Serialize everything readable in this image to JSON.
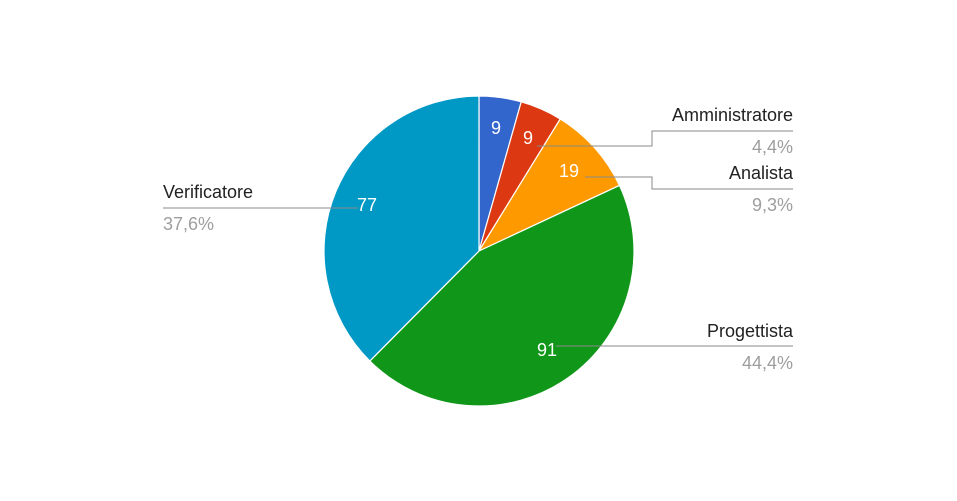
{
  "chart_data": {
    "type": "pie",
    "categories": [
      "",
      "Amministratore",
      "Analista",
      "Progettista",
      "Verificatore"
    ],
    "values": [
      9,
      9,
      19,
      91,
      77
    ],
    "value_labels": [
      "9",
      "9",
      "19",
      "91",
      "77"
    ],
    "percent_labels": [
      "",
      "4,4%",
      "9,3%",
      "44,4%",
      "37,6%"
    ],
    "colors": [
      "#3366cc",
      "#dc3912",
      "#ff9900",
      "#109618",
      "#0099c6"
    ],
    "start_angle_deg": 0,
    "direction": "clockwise",
    "title": "",
    "legend": "labels-beside-slices"
  }
}
